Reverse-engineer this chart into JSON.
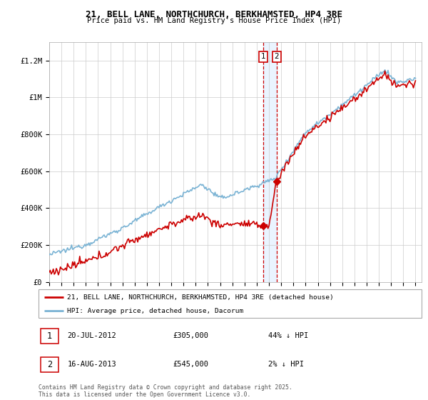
{
  "title": "21, BELL LANE, NORTHCHURCH, BERKHAMSTED, HP4 3RE",
  "subtitle": "Price paid vs. HM Land Registry's House Price Index (HPI)",
  "ylim": [
    0,
    1300000
  ],
  "yticks": [
    0,
    200000,
    400000,
    600000,
    800000,
    1000000,
    1200000
  ],
  "ytick_labels": [
    "£0",
    "£200K",
    "£400K",
    "£600K",
    "£800K",
    "£1M",
    "£1.2M"
  ],
  "hpi_color": "#7ab3d4",
  "price_color": "#cc0000",
  "dashed_color": "#cc0000",
  "shade_color": "#ddeeff",
  "transaction1_date": 2012.55,
  "transaction1_price": 305000,
  "transaction2_date": 2013.62,
  "transaction2_price": 545000,
  "legend_label1": "21, BELL LANE, NORTHCHURCH, BERKHAMSTED, HP4 3RE (detached house)",
  "legend_label2": "HPI: Average price, detached house, Dacorum",
  "annotation1_date": "20-JUL-2012",
  "annotation1_price": "£305,000",
  "annotation1_hpi": "44% ↓ HPI",
  "annotation2_date": "16-AUG-2013",
  "annotation2_price": "£545,000",
  "annotation2_hpi": "2% ↓ HPI",
  "footer": "Contains HM Land Registry data © Crown copyright and database right 2025.\nThis data is licensed under the Open Government Licence v3.0.",
  "background_color": "#ffffff",
  "grid_color": "#cccccc"
}
